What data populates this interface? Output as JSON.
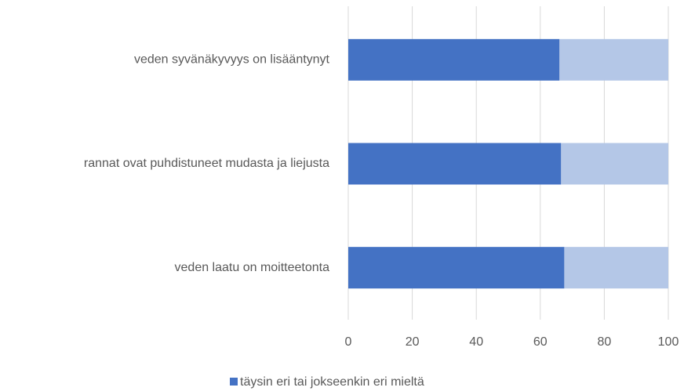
{
  "chart_data": {
    "type": "stacked_barh",
    "categories": [
      "veden syvänäkyvyys on lisääntynyt",
      "rannat ovat puhdistuneet mudasta ja liejusta",
      "veden laatu on moitteetonta"
    ],
    "series": [
      {
        "name": "täysin eri tai jokseenkin eri mieltä",
        "color": "#4472c4",
        "values": [
          66,
          66.5,
          67.5
        ]
      },
      {
        "color": "#b4c7e7",
        "values": [
          34,
          33.5,
          32.5
        ]
      }
    ],
    "xlim": [
      0,
      100
    ],
    "xticks": [
      0,
      20,
      40,
      60,
      80,
      100
    ],
    "grid": true,
    "legend": "bottom"
  }
}
